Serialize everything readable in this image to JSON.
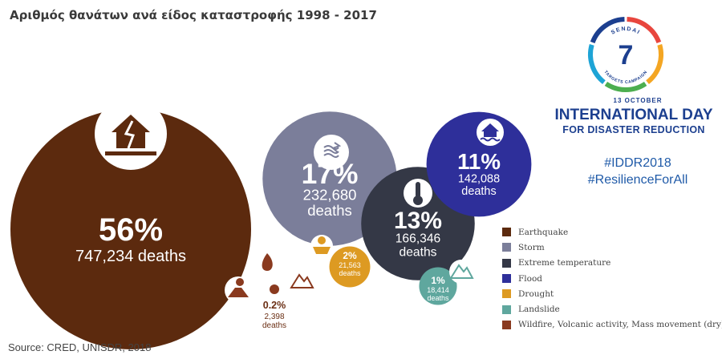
{
  "title": "Αριθμός θανάτων ανά είδος καταστροφής 1998 - 2017",
  "source": "Source: CRED, UNISDR, 2018",
  "campaign_logo": {
    "number": "7",
    "top_text": "SENDAI",
    "bottom_text": "TARGETS CAMPAIGN",
    "ring_colors": [
      "#e8463e",
      "#f4a623",
      "#4cae4f",
      "#1ea4d6",
      "#1c3f8f"
    ]
  },
  "idr": {
    "date": "13 OCTOBER",
    "line1": "INTERNATIONAL DAY",
    "line2": "FOR DISASTER REDUCTION",
    "hashtag1": "#IDDR2018",
    "hashtag2": "#ResilienceForAll"
  },
  "chart_data": {
    "type": "bubble",
    "unit": "deaths",
    "categories": [
      {
        "name": "Earthquake",
        "percent": "56%",
        "deaths": 747234,
        "label": "747,234 deaths",
        "color": "#5c2a0e",
        "icon": "house-crack-icon"
      },
      {
        "name": "Storm",
        "percent": "17%",
        "deaths": 232680,
        "label": "232,680",
        "label2": "deaths",
        "color": "#7b7e9a",
        "icon": "storm-icon"
      },
      {
        "name": "Extreme temperature",
        "percent": "13%",
        "deaths": 166346,
        "label": "166,346",
        "label2": "deaths",
        "color": "#343846",
        "icon": "thermometer-icon"
      },
      {
        "name": "Flood",
        "percent": "11%",
        "deaths": 142088,
        "label": "142,088",
        "label2": "deaths",
        "color": "#2e2f9a",
        "icon": "flood-house-icon"
      },
      {
        "name": "Drought",
        "percent": "2%",
        "deaths": 21563,
        "label": "21,563",
        "label2": "deaths",
        "color": "#dd9a22",
        "icon": "drought-icon"
      },
      {
        "name": "Landslide",
        "percent": "1%",
        "deaths": 18414,
        "label": "18,414",
        "label2": "deaths",
        "color": "#5fa79e",
        "icon": "landslide-icon"
      },
      {
        "name": "Wildfire, Volcanic activity, Mass movement (dry)",
        "percent": "0.2%",
        "deaths": 2398,
        "label": "2,398",
        "label2": "deaths",
        "color": "#8a3a1f",
        "icon_names": [
          "volcano-icon",
          "wildfire-icon",
          "mountain-icon"
        ]
      }
    ]
  }
}
